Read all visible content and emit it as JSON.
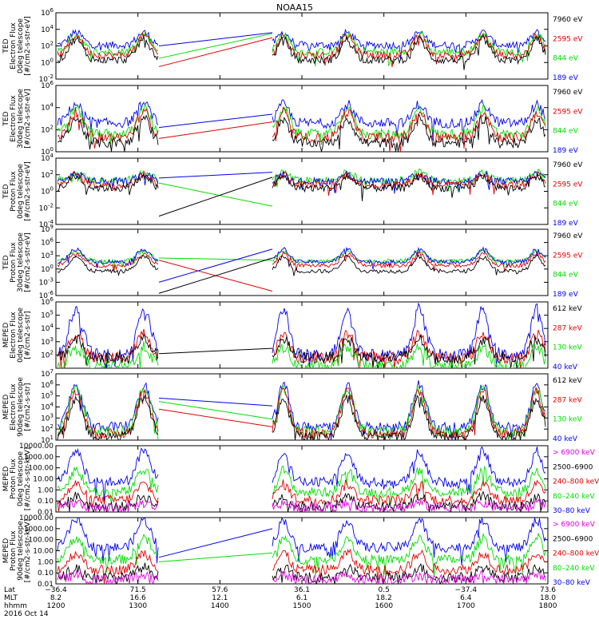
{
  "title": "NOAA15",
  "x_axis": {
    "row_labels": [
      "Lat",
      "MLT",
      "hhmm"
    ],
    "ticks": [
      {
        "lat": "−36.4",
        "mlt": "8.2",
        "hhmm": "1200"
      },
      {
        "lat": "71.5",
        "mlt": "16.6",
        "hhmm": "1300"
      },
      {
        "lat": "57.6",
        "mlt": "12.1",
        "hhmm": "1400"
      },
      {
        "lat": "36.1",
        "mlt": "6.1",
        "hhmm": "1500"
      },
      {
        "lat": "0.5",
        "mlt": "18.2",
        "hhmm": "1600"
      },
      {
        "lat": "−37.4",
        "mlt": "6.4",
        "hhmm": "1700"
      },
      {
        "lat": "73.6",
        "mlt": "18.0",
        "hhmm": "1800"
      }
    ],
    "date": "2016 Oct 14"
  },
  "colors": {
    "black": "#000000",
    "red": "#e00000",
    "green": "#00dd00",
    "blue": "#0000ee",
    "magenta": "#e000e0"
  },
  "chart_data": [
    {
      "type": "line",
      "ylabel": [
        "TED",
        "Electron Flux",
        "0deg telescope",
        "[#/cm2-s-str-eV]"
      ],
      "log": true,
      "ylim_exp": [
        -2,
        6
      ],
      "tick_exps": [
        -2,
        0,
        2,
        4,
        6
      ],
      "tick_style": "power",
      "legend": [
        {
          "label": "7960 eV",
          "color": "black"
        },
        {
          "label": "2595 eV",
          "color": "red"
        },
        {
          "label": "844 eV",
          "color": "green"
        },
        {
          "label": "189 eV",
          "color": "blue"
        }
      ],
      "gap_lines": [
        {
          "color": "green",
          "from": 0.5,
          "to": 3.5
        },
        {
          "color": "red",
          "from": -0.5,
          "to": 3.0
        },
        {
          "color": "blue",
          "from": 2.0,
          "to": 3.6
        }
      ],
      "series_levels": [
        {
          "color": "blue",
          "base": 2.1,
          "burst": 3.6
        },
        {
          "color": "green",
          "base": 1.3,
          "burst": 3.4
        },
        {
          "color": "red",
          "base": 0.9,
          "burst": 3.2
        },
        {
          "color": "black",
          "base": 0.3,
          "burst": 2.8
        }
      ]
    },
    {
      "type": "line",
      "ylabel": [
        "TED",
        "Electron Flux",
        "30deg telescope",
        "[#/cm2-s-str-eV]"
      ],
      "log": true,
      "ylim_exp": [
        0,
        6
      ],
      "tick_exps": [
        0,
        2,
        4,
        6
      ],
      "tick_style": "power",
      "legend": [
        {
          "label": "7960 eV",
          "color": "black"
        },
        {
          "label": "2595 eV",
          "color": "red"
        },
        {
          "label": "844 eV",
          "color": "green"
        },
        {
          "label": "189 eV",
          "color": "blue"
        }
      ],
      "gap_lines": [
        {
          "color": "red",
          "from": 1.2,
          "to": 2.7
        },
        {
          "color": "blue",
          "from": 2.2,
          "to": 3.4
        }
      ],
      "series_levels": [
        {
          "color": "blue",
          "base": 2.6,
          "burst": 4.3
        },
        {
          "color": "green",
          "base": 1.6,
          "burst": 3.9
        },
        {
          "color": "red",
          "base": 1.3,
          "burst": 3.6
        },
        {
          "color": "black",
          "base": 0.8,
          "burst": 3.0
        }
      ]
    },
    {
      "type": "line",
      "ylabel": [
        "TED",
        "Proton Flux",
        "0deg telescope",
        "[#/cm2-s-str-eV]"
      ],
      "log": true,
      "ylim_exp": [
        -4,
        4
      ],
      "tick_exps": [
        -4,
        -2,
        0,
        2,
        4
      ],
      "tick_style": "power",
      "legend": [
        {
          "label": "7960 eV",
          "color": "black"
        },
        {
          "label": "2595 eV",
          "color": "red"
        },
        {
          "label": "844 eV",
          "color": "green"
        },
        {
          "label": "189 eV",
          "color": "blue"
        }
      ],
      "gap_lines": [
        {
          "color": "blue",
          "from": 1.6,
          "to": 2.3
        },
        {
          "color": "green",
          "from": 1.0,
          "to": -1.8
        },
        {
          "color": "black",
          "from": -3.0,
          "to": 1.7
        }
      ],
      "series_levels": [
        {
          "color": "green",
          "base": 1.3,
          "burst": 2.3
        },
        {
          "color": "blue",
          "base": 1.2,
          "burst": 2.1
        },
        {
          "color": "red",
          "base": 0.8,
          "burst": 2.0
        },
        {
          "color": "black",
          "base": 0.4,
          "burst": 1.8
        }
      ]
    },
    {
      "type": "line",
      "ylabel": [
        "TED",
        "Proton Flux",
        "30deg telescope",
        "[#/cm2-s-str-eV]"
      ],
      "log": true,
      "ylim_exp": [
        -6,
        9
      ],
      "tick_exps": [
        -6,
        -3,
        0,
        3,
        6,
        9
      ],
      "tick_style": "power",
      "legend": [
        {
          "label": "7960 eV",
          "color": "black"
        },
        {
          "label": "2595 eV",
          "color": "red"
        },
        {
          "label": "844 eV",
          "color": "green"
        },
        {
          "label": "189 eV",
          "color": "blue"
        }
      ],
      "gap_lines": [
        {
          "color": "green",
          "from": 2.5,
          "to": 2.0
        },
        {
          "color": "red",
          "from": 2.0,
          "to": -5.0
        },
        {
          "color": "blue",
          "from": -3.0,
          "to": 4.5
        },
        {
          "color": "black",
          "from": -5.5,
          "to": 2.5
        }
      ],
      "series_levels": [
        {
          "color": "green",
          "base": 1.8,
          "burst": 4.0
        },
        {
          "color": "blue",
          "base": 1.6,
          "burst": 4.5
        },
        {
          "color": "red",
          "base": 0.8,
          "burst": 3.5
        },
        {
          "color": "black",
          "base": -0.5,
          "burst": 2.8
        }
      ]
    },
    {
      "type": "line",
      "ylabel": [
        "MEPED",
        "Electron Flux",
        "0deg telescope",
        "[#/cm2-s-str]"
      ],
      "log": true,
      "ylim_exp": [
        1,
        6
      ],
      "tick_exps": [
        2,
        3,
        4,
        5,
        6
      ],
      "tick_style": "power",
      "legend": [
        {
          "label": "612 keV",
          "color": "black"
        },
        {
          "label": "287 keV",
          "color": "red"
        },
        {
          "label": "130 keV",
          "color": "green"
        },
        {
          "label": "40 keV",
          "color": "blue"
        }
      ],
      "gap_lines": [
        {
          "color": "black",
          "from": 2.1,
          "to": 2.5
        }
      ],
      "series_levels": [
        {
          "color": "blue",
          "base": 2.0,
          "burst": 5.5
        },
        {
          "color": "red",
          "base": 1.8,
          "burst": 3.6
        },
        {
          "color": "black",
          "base": 1.8,
          "burst": 3.2
        },
        {
          "color": "green",
          "base": 1.1,
          "burst": 2.6
        }
      ]
    },
    {
      "type": "line",
      "ylabel": [
        "MEPED",
        "Electron Flux",
        "90deg telescope",
        "[#/cm2-s-str]"
      ],
      "log": true,
      "ylim_exp": [
        1,
        7
      ],
      "tick_exps": [
        1,
        2,
        3,
        4,
        5,
        6,
        7
      ],
      "tick_style": "power",
      "legend": [
        {
          "label": "612 keV",
          "color": "black"
        },
        {
          "label": "287 keV",
          "color": "red"
        },
        {
          "label": "130 keV",
          "color": "green"
        },
        {
          "label": "40 keV",
          "color": "blue"
        }
      ],
      "gap_lines": [
        {
          "color": "blue",
          "from": 4.8,
          "to": 4.1
        },
        {
          "color": "green",
          "from": 4.5,
          "to": 2.9
        },
        {
          "color": "red",
          "from": 3.8,
          "to": 2.2
        }
      ],
      "series_levels": [
        {
          "color": "blue",
          "base": 2.2,
          "burst": 6.0
        },
        {
          "color": "green",
          "base": 1.8,
          "burst": 5.7
        },
        {
          "color": "red",
          "base": 1.6,
          "burst": 5.4
        },
        {
          "color": "black",
          "base": 1.3,
          "burst": 4.8
        }
      ]
    },
    {
      "type": "line",
      "ylabel": [
        "MEPED",
        "Proton Flux",
        "0deg telescope",
        "[#/cm2-s-str-keV]"
      ],
      "log": true,
      "ylim_exp": [
        -2,
        4
      ],
      "tick_exps": [
        -2,
        -1,
        0,
        1,
        2,
        3,
        4
      ],
      "tick_style": "decimal",
      "tick_labels": [
        "0.01",
        "0.10",
        "1.00",
        "10.00",
        "100.00",
        "1000.00",
        "10000.00"
      ],
      "legend": [
        {
          "label": "> 6900 keV",
          "color": "magenta"
        },
        {
          "label": "2500–6900",
          "color": "black"
        },
        {
          "label": "240–800 keV",
          "color": "red"
        },
        {
          "label": "80–240 keV",
          "color": "green"
        },
        {
          "label": "30–80 keV",
          "color": "blue"
        }
      ],
      "gap_lines": [],
      "series_levels": [
        {
          "color": "blue",
          "base": 0.7,
          "burst": 3.5
        },
        {
          "color": "green",
          "base": -0.2,
          "burst": 1.8
        },
        {
          "color": "red",
          "base": -0.9,
          "burst": 0.5
        },
        {
          "color": "black",
          "base": -1.5,
          "burst": -0.6
        },
        {
          "color": "magenta",
          "base": -1.6,
          "burst": -1.2
        }
      ]
    },
    {
      "type": "line",
      "ylabel": [
        "MEPED",
        "Proton Flux",
        "90deg telescope",
        "[#/cm2-s-str-keV]"
      ],
      "log": true,
      "ylim_exp": [
        -2,
        4
      ],
      "tick_exps": [
        -2,
        -1,
        0,
        1,
        2,
        3,
        4
      ],
      "tick_style": "decimal",
      "tick_labels": [
        "0.01",
        "0.10",
        "1.00",
        "10.00",
        "100.00",
        "1000.00",
        "10000.00"
      ],
      "legend": [
        {
          "label": "> 6900 keV",
          "color": "magenta"
        },
        {
          "label": "2500–6900",
          "color": "black"
        },
        {
          "label": "240–800 keV",
          "color": "red"
        },
        {
          "label": "80–240 keV",
          "color": "green"
        },
        {
          "label": "30–80 keV",
          "color": "blue"
        }
      ],
      "gap_lines": [
        {
          "color": "blue",
          "from": 0.4,
          "to": 3.0
        },
        {
          "color": "green",
          "from": 0.0,
          "to": 0.8
        }
      ],
      "series_levels": [
        {
          "color": "blue",
          "base": 1.3,
          "burst": 3.8
        },
        {
          "color": "green",
          "base": 0.2,
          "burst": 2.2
        },
        {
          "color": "red",
          "base": -0.7,
          "burst": 0.8
        },
        {
          "color": "black",
          "base": -1.4,
          "burst": -0.5
        },
        {
          "color": "magenta",
          "base": -1.6,
          "burst": -1.2
        }
      ]
    }
  ]
}
